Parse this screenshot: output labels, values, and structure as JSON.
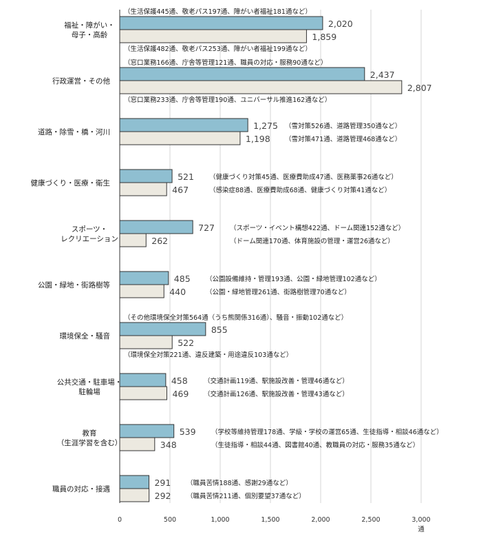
{
  "chart_data": {
    "type": "bar",
    "orientation": "horizontal",
    "unit": "通",
    "xlim": [
      0,
      3000
    ],
    "xticks": [
      "0",
      "500",
      "1,000",
      "1,500",
      "2,000",
      "2,500",
      "3,000"
    ],
    "grid": true,
    "colors": {
      "top_bar": "#8fbfd1",
      "bottom_bar": "#ece9e0",
      "outline": "#333333"
    },
    "categories": [
      "福祉・障がい・母子・高齢",
      "行政運営・その他",
      "道路・除雪・橋・河川",
      "健康づくり・医療・衛生",
      "スポーツ・レクリエーション",
      "公園・緑地・街路樹等",
      "環境保全・騒音",
      "公共交通・駐車場・駐輪場",
      "教育（生涯学習を含む）",
      "職員の対応・接遇"
    ],
    "category_lines": [
      [
        "福祉・障がい・",
        "母子・高齢"
      ],
      [
        "行政運営・その他"
      ],
      [
        "道路・除雪・橋・河川"
      ],
      [
        "健康づくり・医療・衛生"
      ],
      [
        "スポーツ・",
        "レクリエーション"
      ],
      [
        "公園・緑地・街路樹等"
      ],
      [
        "環境保全・騒音"
      ],
      [
        "公共交通・駐車場・",
        "駐輪場"
      ],
      [
        "教育",
        "（生涯学習を含む）"
      ],
      [
        "職員の対応・接遇"
      ]
    ],
    "series": [
      {
        "values": [
          2020,
          2437,
          1275,
          521,
          727,
          485,
          855,
          458,
          539,
          291
        ],
        "labels": [
          "2,020",
          "2,437",
          "1,275",
          "521",
          "727",
          "485",
          "855",
          "458",
          "539",
          "291"
        ],
        "notes": [
          "（生活保護445通、敬老パス197通、障がい者福祉181通など）",
          "（窓口業務166通、庁舎等管理121通、職員の対応・服務90通など）",
          "（雪対策526通、道路管理350通など）",
          "（健康づくり対策45通、医療費助成47通、医務薬事26通など）",
          "（スポーツ・イベント構想422通、ドーム関連152通など）",
          "（公園設備維持・管理193通、公園・緑地管理102通など）",
          "（その他環境保全対策564通（うち熊関係316通）、騒音・振動102通など）",
          "（交通計画119通、駅施設改善・管理46通など）",
          "（学校等維持管理178通、学級・学校の運営65通、生徒指導・相談46通など）",
          "（職員苦情188通、感謝29通など）"
        ]
      },
      {
        "values": [
          1859,
          2807,
          1198,
          467,
          262,
          440,
          522,
          469,
          348,
          292
        ],
        "labels": [
          "1,859",
          "2,807",
          "1,198",
          "467",
          "262",
          "440",
          "522",
          "469",
          "348",
          "292"
        ],
        "notes": [
          "（生活保護482通、敬老パス253通、障がい者福祉199通など）",
          "（窓口業務233通、庁舎等管理190通、ユニバーサル推進162通など）",
          "（雪対策471通、道路管理468通など）",
          "（感染症88通、医療費助成68通、健康づくり対策41通など）",
          "（ドーム関連170通、体育施設の管理・運営26通など）",
          "（公園・緑地管理261通、街路樹管理70通など）",
          "（環境保全対策221通、違反建築・用途違反103通など）",
          "（交通計画126通、駅施設改善・管理43通など）",
          "（生徒指導・相談44通、図書館40通、教職員の対応・服務35通など）",
          "（職員苦情211通、個別要望37通など）"
        ]
      }
    ]
  }
}
